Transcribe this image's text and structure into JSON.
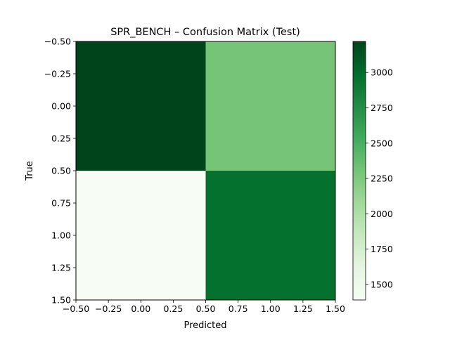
{
  "chart_data": {
    "type": "heatmap",
    "title": "SPR_BENCH – Confusion Matrix (Test)",
    "xlabel": "Predicted",
    "ylabel": "True",
    "rows": [
      0,
      1
    ],
    "cols": [
      0,
      1
    ],
    "values": [
      [
        3220,
        2300
      ],
      [
        1390,
        2960
      ]
    ],
    "xlim": [
      -0.5,
      1.5
    ],
    "ylim": [
      1.5,
      -0.5
    ],
    "xticks": [
      -0.5,
      -0.25,
      0.0,
      0.25,
      0.5,
      0.75,
      1.0,
      1.25,
      1.5
    ],
    "xtick_labels": [
      "−0.50",
      "−0.25",
      "0.00",
      "0.25",
      "0.50",
      "0.75",
      "1.00",
      "1.25",
      "1.50"
    ],
    "yticks": [
      -0.5,
      -0.25,
      0.0,
      0.25,
      0.5,
      0.75,
      1.0,
      1.25,
      1.5
    ],
    "ytick_labels": [
      "−0.50",
      "−0.25",
      "0.00",
      "0.25",
      "0.50",
      "0.75",
      "1.00",
      "1.25",
      "1.50"
    ],
    "colormap": "Greens",
    "colorbar": {
      "vmin": 1390,
      "vmax": 3220,
      "ticks": [
        1500,
        1750,
        2000,
        2250,
        2500,
        2750,
        3000
      ],
      "tick_labels": [
        "1500",
        "1750",
        "2000",
        "2250",
        "2500",
        "2750",
        "3000"
      ]
    },
    "grid": false,
    "legend": false
  }
}
